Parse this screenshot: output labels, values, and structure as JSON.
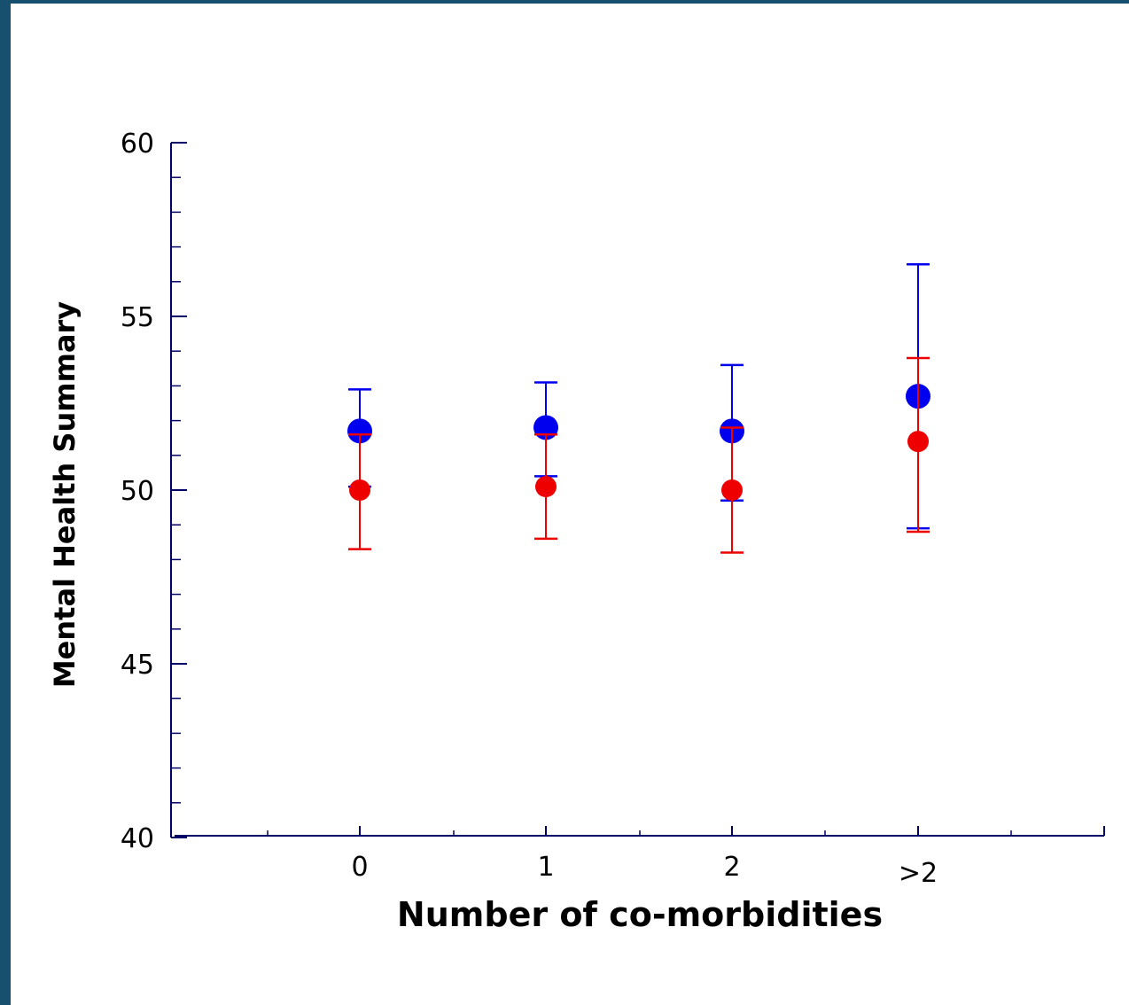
{
  "chart_data": {
    "type": "scatter",
    "title": "",
    "xlabel": "Number of co-morbidities",
    "ylabel": "Mental Health Summary",
    "categories": [
      "0",
      "1",
      "2",
      ">2"
    ],
    "ylim": [
      40,
      60
    ],
    "yticks": [
      "40",
      "45",
      "50",
      "55",
      "60"
    ],
    "grid": false,
    "series": [
      {
        "color": "#0000ee",
        "values": [
          51.7,
          51.8,
          51.7,
          52.7
        ],
        "lower": [
          50.1,
          50.4,
          49.7,
          48.9
        ],
        "upper": [
          52.9,
          53.1,
          53.6,
          56.5
        ]
      },
      {
        "color": "#ee0000",
        "values": [
          50.0,
          50.1,
          50.0,
          51.4
        ],
        "lower": [
          48.3,
          48.6,
          48.2,
          48.8
        ],
        "upper": [
          51.6,
          51.6,
          51.8,
          53.8
        ]
      }
    ]
  },
  "colors": {
    "frame": "#16506e",
    "background": "#ffffff",
    "axis": "#000066"
  }
}
